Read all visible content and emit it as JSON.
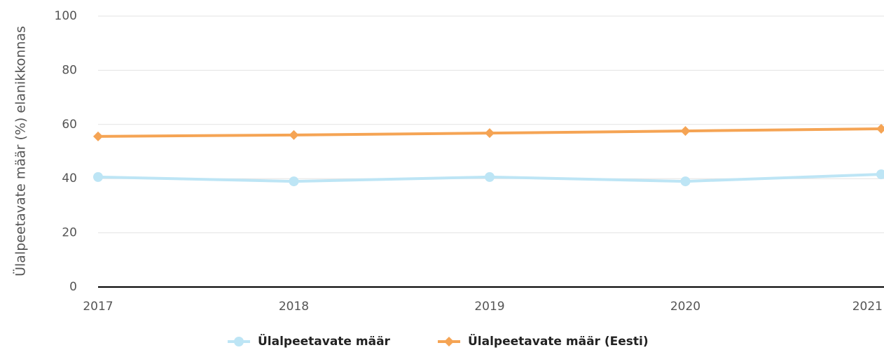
{
  "chart_data": {
    "type": "line",
    "y_label": "Ülalpeetavate määr (%) elanikkonnas",
    "categories": [
      "2017",
      "2018",
      "2019",
      "2020",
      "2021"
    ],
    "series": [
      {
        "name": "Ülalpeetavate määr",
        "color": "#bde5f5",
        "marker": "circle",
        "values": [
          40.6,
          39.0,
          40.6,
          39.0,
          41.6
        ]
      },
      {
        "name": "Ülalpeetavate määr (Eesti)",
        "color": "#f5a454",
        "marker": "diamond",
        "values": [
          55.6,
          56.1,
          56.8,
          57.6,
          58.4
        ]
      }
    ],
    "ylim": [
      0,
      100
    ],
    "yticks": [
      0,
      20,
      40,
      60,
      80,
      100
    ],
    "grid": true,
    "legend": "bottom"
  }
}
